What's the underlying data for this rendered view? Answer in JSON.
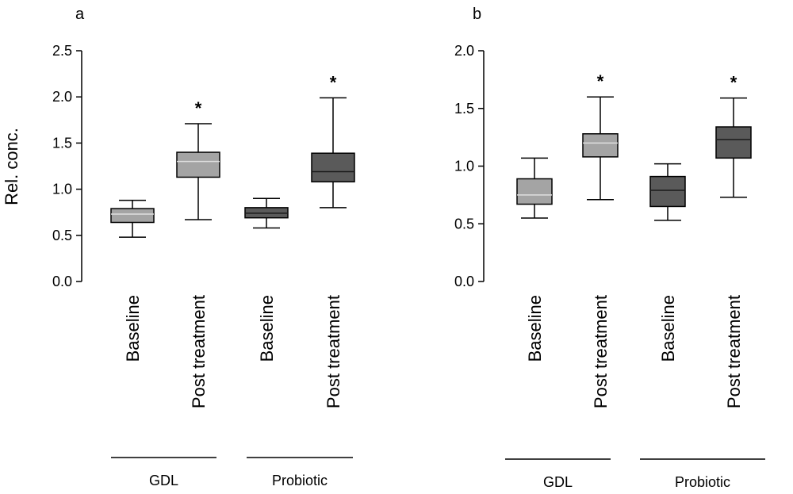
{
  "chart_data": [
    {
      "type": "boxplot",
      "panel": "a",
      "ylabel": "Rel. conc.",
      "ylim": [
        0.0,
        2.5
      ],
      "yticks": [
        "0.0",
        "0.5",
        "1.0",
        "1.5",
        "2.0",
        "2.5"
      ],
      "categories": [
        "Baseline",
        "Post treatment",
        "Baseline",
        "Post treatment"
      ],
      "groups": [
        {
          "label": "GDL",
          "span": [
            0,
            1
          ]
        },
        {
          "label": "Probiotic",
          "span": [
            2,
            3
          ]
        }
      ],
      "boxes": [
        {
          "category": "Baseline",
          "group": "GDL",
          "shade": "light",
          "min": 0.48,
          "q1": 0.64,
          "median": 0.73,
          "q3": 0.79,
          "max": 0.88,
          "star": false
        },
        {
          "category": "Post treatment",
          "group": "GDL",
          "shade": "light",
          "min": 0.67,
          "q1": 1.13,
          "median": 1.3,
          "q3": 1.4,
          "max": 1.71,
          "star": true
        },
        {
          "category": "Baseline",
          "group": "Probiotic",
          "shade": "dark",
          "min": 0.58,
          "q1": 0.69,
          "median": 0.74,
          "q3": 0.8,
          "max": 0.9,
          "star": false
        },
        {
          "category": "Post treatment",
          "group": "Probiotic",
          "shade": "dark",
          "min": 0.8,
          "q1": 1.08,
          "median": 1.19,
          "q3": 1.39,
          "max": 1.99,
          "star": true
        }
      ],
      "star_symbol": "*"
    },
    {
      "type": "boxplot",
      "panel": "b",
      "ylabel": "",
      "ylim": [
        0.0,
        2.0
      ],
      "yticks": [
        "0.0",
        "0.5",
        "1.0",
        "1.5",
        "2.0"
      ],
      "categories": [
        "Baseline",
        "Post treatment",
        "Baseline",
        "Post treatment"
      ],
      "groups": [
        {
          "label": "GDL",
          "span": [
            0,
            1
          ]
        },
        {
          "label": "Probiotic",
          "span": [
            2,
            3
          ]
        }
      ],
      "boxes": [
        {
          "category": "Baseline",
          "group": "GDL",
          "shade": "light",
          "min": 0.55,
          "q1": 0.67,
          "median": 0.75,
          "q3": 0.89,
          "max": 1.07,
          "star": false
        },
        {
          "category": "Post treatment",
          "group": "GDL",
          "shade": "light",
          "min": 0.71,
          "q1": 1.08,
          "median": 1.2,
          "q3": 1.28,
          "max": 1.6,
          "star": true
        },
        {
          "category": "Baseline",
          "group": "Probiotic",
          "shade": "dark",
          "min": 0.53,
          "q1": 0.65,
          "median": 0.79,
          "q3": 0.91,
          "max": 1.02,
          "star": false
        },
        {
          "category": "Post treatment",
          "group": "Probiotic",
          "shade": "dark",
          "min": 0.73,
          "q1": 1.07,
          "median": 1.23,
          "q3": 1.34,
          "max": 1.59,
          "star": true
        }
      ],
      "star_symbol": "*"
    }
  ],
  "colors": {
    "light": "#a4a4a4",
    "dark": "#5a5a5a",
    "axis": "#000000"
  }
}
